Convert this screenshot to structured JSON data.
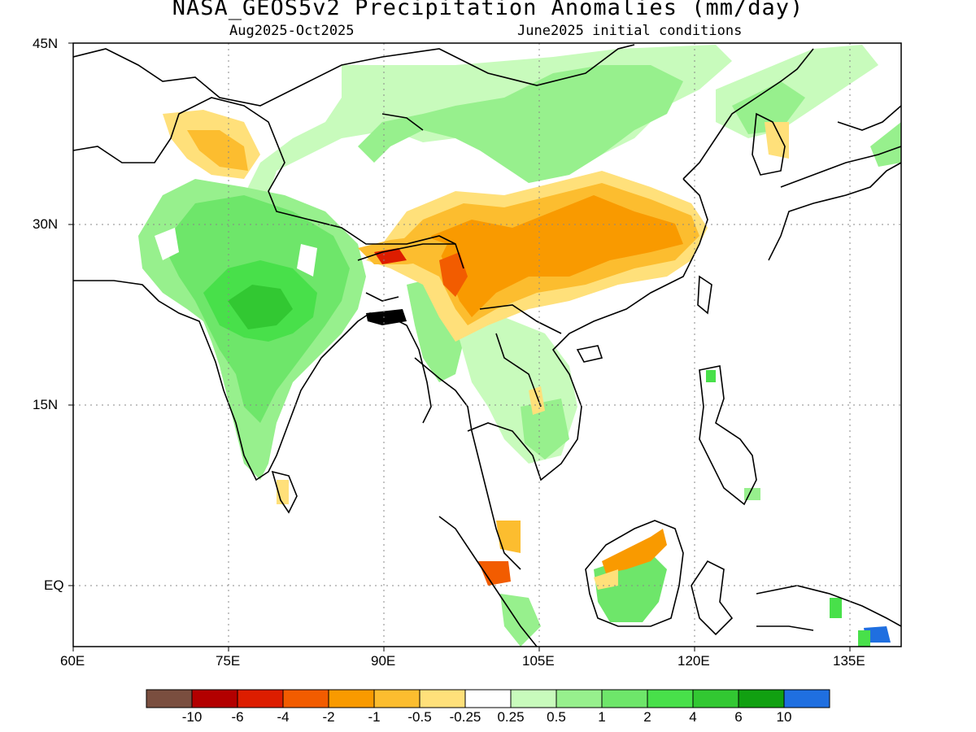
{
  "title": "NASA_GEOS5v2 Precipitation Anomalies (mm/day)",
  "subtitle_left": "Aug2025-Oct2025",
  "subtitle_right": "June2025 initial conditions",
  "map": {
    "lon_range": [
      60,
      140
    ],
    "lat_range": [
      -5.5,
      45
    ],
    "lat_labels": [
      "45N",
      "30N",
      "15N",
      "EQ"
    ],
    "lon_labels": [
      "60E",
      "75E",
      "90E",
      "105E",
      "120E",
      "135E"
    ],
    "gridlines": "dotted"
  },
  "colorbar": {
    "labels": [
      "-10",
      "-6",
      "-4",
      "-2",
      "-1",
      "-0.5",
      "-0.25",
      "0.25",
      "0.5",
      "1",
      "2",
      "4",
      "6",
      "10"
    ],
    "colors": [
      "#7a4e3f",
      "#b30000",
      "#dd1d00",
      "#f25c00",
      "#f99a00",
      "#fcbd2f",
      "#ffe07a",
      "#ffffff",
      "#c8fbbc",
      "#97f08d",
      "#6ee66a",
      "#48e04a",
      "#32c832",
      "#11a011",
      "#1f6fe0"
    ]
  },
  "anomaly_regions": [
    {
      "name": "western-india",
      "level": "1 to 2",
      "color": "#6ee66a"
    },
    {
      "name": "central-india-core",
      "level": "2 to 4",
      "color": "#48e04a"
    },
    {
      "name": "central-india-peak",
      "level": "4 to 6",
      "color": "#32c832"
    },
    {
      "name": "northern-china",
      "level": "0.5 to 1",
      "color": "#97f08d"
    },
    {
      "name": "mongolia-band",
      "level": "0.25 to 0.5",
      "color": "#c8fbbc"
    },
    {
      "name": "southern-china",
      "level": "-1 to -2",
      "color": "#f99a00"
    },
    {
      "name": "tibet-north",
      "level": "-0.5 to -1",
      "color": "#fcbd2f"
    },
    {
      "name": "eastern-himalaya",
      "level": "-2 to -4",
      "color": "#f25c00"
    },
    {
      "name": "bhutan",
      "level": "-4 to -6",
      "color": "#dd1d00"
    },
    {
      "name": "karakoram",
      "level": "-0.5 to -1",
      "color": "#fcbd2f"
    },
    {
      "name": "borneo",
      "level": "1 to 2",
      "color": "#6ee66a"
    },
    {
      "name": "borneo-north",
      "level": "-1 to -2",
      "color": "#f99a00"
    },
    {
      "name": "myanmar",
      "level": "0.5 to 1",
      "color": "#97f08d"
    },
    {
      "name": "indochina",
      "level": "0.25 to 0.5",
      "color": "#c8fbbc"
    }
  ]
}
